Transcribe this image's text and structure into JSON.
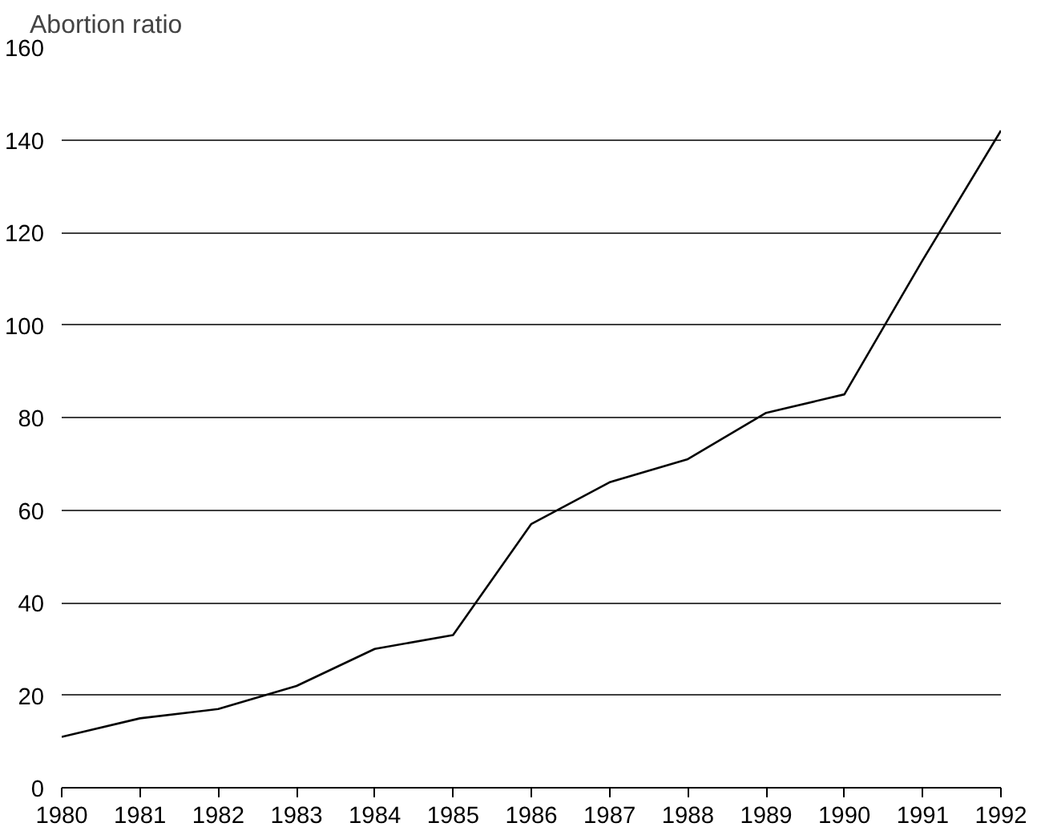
{
  "chart_data": {
    "type": "line",
    "ylabel": "Abortion ratio",
    "x": [
      1980,
      1981,
      1982,
      1983,
      1984,
      1985,
      1986,
      1987,
      1988,
      1989,
      1990,
      1991,
      1992
    ],
    "series": [
      {
        "color": "#000000",
        "values": [
          11,
          15,
          17,
          22,
          30,
          33,
          57,
          66,
          71,
          81,
          85,
          114,
          142
        ]
      }
    ],
    "xlim": [
      1980,
      1992
    ],
    "ylim": [
      0,
      160
    ],
    "xticks": [
      1980,
      1981,
      1982,
      1983,
      1984,
      1985,
      1986,
      1987,
      1988,
      1989,
      1990,
      1991,
      1992
    ],
    "yticks": [
      0,
      20,
      40,
      60,
      80,
      100,
      120,
      140,
      160
    ],
    "grid": "y",
    "marker": "none",
    "line_style": "solid"
  }
}
